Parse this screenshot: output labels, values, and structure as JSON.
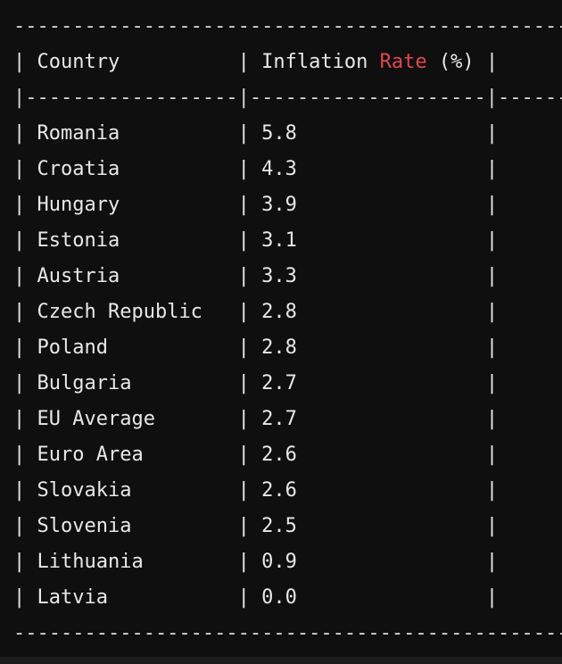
{
  "table": {
    "headers": {
      "country": "Country",
      "inflation_prefix": "Inflation",
      "inflation_highlight": "Rate",
      "inflation_suffix": "(%)"
    },
    "rows": [
      {
        "country": "Romania",
        "rate": "5.8"
      },
      {
        "country": "Croatia",
        "rate": "4.3"
      },
      {
        "country": "Hungary",
        "rate": "3.9"
      },
      {
        "country": "Estonia",
        "rate": "3.1"
      },
      {
        "country": "Austria",
        "rate": "3.3"
      },
      {
        "country": "Czech Republic",
        "rate": "2.8"
      },
      {
        "country": "Poland",
        "rate": "2.8"
      },
      {
        "country": "Bulgaria",
        "rate": "2.7"
      },
      {
        "country": "EU Average",
        "rate": "2.7"
      },
      {
        "country": "Euro Area",
        "rate": "2.6"
      },
      {
        "country": "Slovakia",
        "rate": "2.6"
      },
      {
        "country": "Slovenia",
        "rate": "2.5"
      },
      {
        "country": "Lithuania",
        "rate": "0.9"
      },
      {
        "country": "Latvia",
        "rate": "0.0"
      }
    ]
  },
  "colors": {
    "background": "#0f0f0f",
    "text": "#e8e8e8",
    "highlight": "#e0474c"
  }
}
